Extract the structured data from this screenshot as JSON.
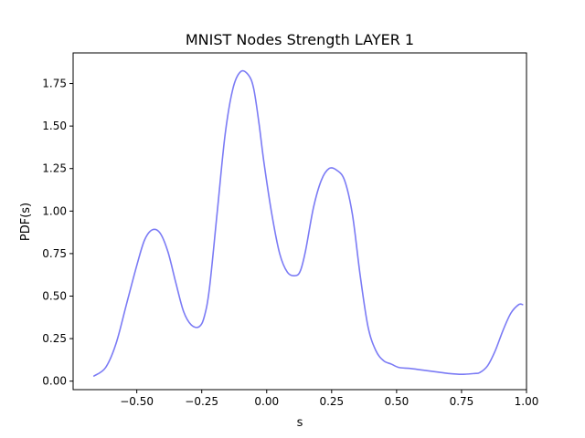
{
  "chart_data": {
    "type": "line",
    "title": "MNIST Nodes Strength LAYER 1",
    "xlabel": "s",
    "ylabel": "PDF(s)",
    "xlim": [
      -0.745,
      1.0
    ],
    "ylim": [
      -0.05,
      1.93
    ],
    "xticks": [
      -0.5,
      -0.25,
      0.0,
      0.25,
      0.5,
      0.75,
      1.0
    ],
    "xtick_labels": [
      "−0.50",
      "−0.25",
      "0.00",
      "0.25",
      "0.50",
      "0.75",
      "1.00"
    ],
    "yticks": [
      0.0,
      0.25,
      0.5,
      0.75,
      1.0,
      1.25,
      1.5,
      1.75
    ],
    "ytick_labels": [
      "0.00",
      "0.25",
      "0.50",
      "0.75",
      "1.00",
      "1.25",
      "1.50",
      "1.75"
    ],
    "grid": false,
    "legend": "none",
    "series": [
      {
        "color": "#7b7bf5",
        "x": [
          -0.665,
          -0.62,
          -0.58,
          -0.54,
          -0.5,
          -0.47,
          -0.44,
          -0.41,
          -0.38,
          -0.35,
          -0.32,
          -0.29,
          -0.26,
          -0.24,
          -0.22,
          -0.19,
          -0.16,
          -0.13,
          -0.1,
          -0.07,
          -0.05,
          -0.03,
          -0.01,
          0.02,
          0.05,
          0.08,
          0.11,
          0.13,
          0.15,
          0.18,
          0.21,
          0.24,
          0.27,
          0.3,
          0.33,
          0.36,
          0.39,
          0.42,
          0.45,
          0.48,
          0.51,
          0.55,
          0.6,
          0.65,
          0.7,
          0.75,
          0.8,
          0.82,
          0.85,
          0.88,
          0.91,
          0.94,
          0.97,
          0.985
        ],
        "y": [
          0.03,
          0.08,
          0.22,
          0.45,
          0.68,
          0.83,
          0.89,
          0.87,
          0.76,
          0.58,
          0.41,
          0.33,
          0.32,
          0.38,
          0.55,
          1.0,
          1.45,
          1.72,
          1.82,
          1.8,
          1.72,
          1.52,
          1.28,
          0.98,
          0.75,
          0.64,
          0.62,
          0.65,
          0.77,
          1.02,
          1.18,
          1.25,
          1.24,
          1.18,
          0.98,
          0.62,
          0.32,
          0.18,
          0.12,
          0.1,
          0.08,
          0.075,
          0.065,
          0.055,
          0.045,
          0.04,
          0.045,
          0.05,
          0.09,
          0.18,
          0.3,
          0.4,
          0.45,
          0.45
        ]
      }
    ]
  }
}
